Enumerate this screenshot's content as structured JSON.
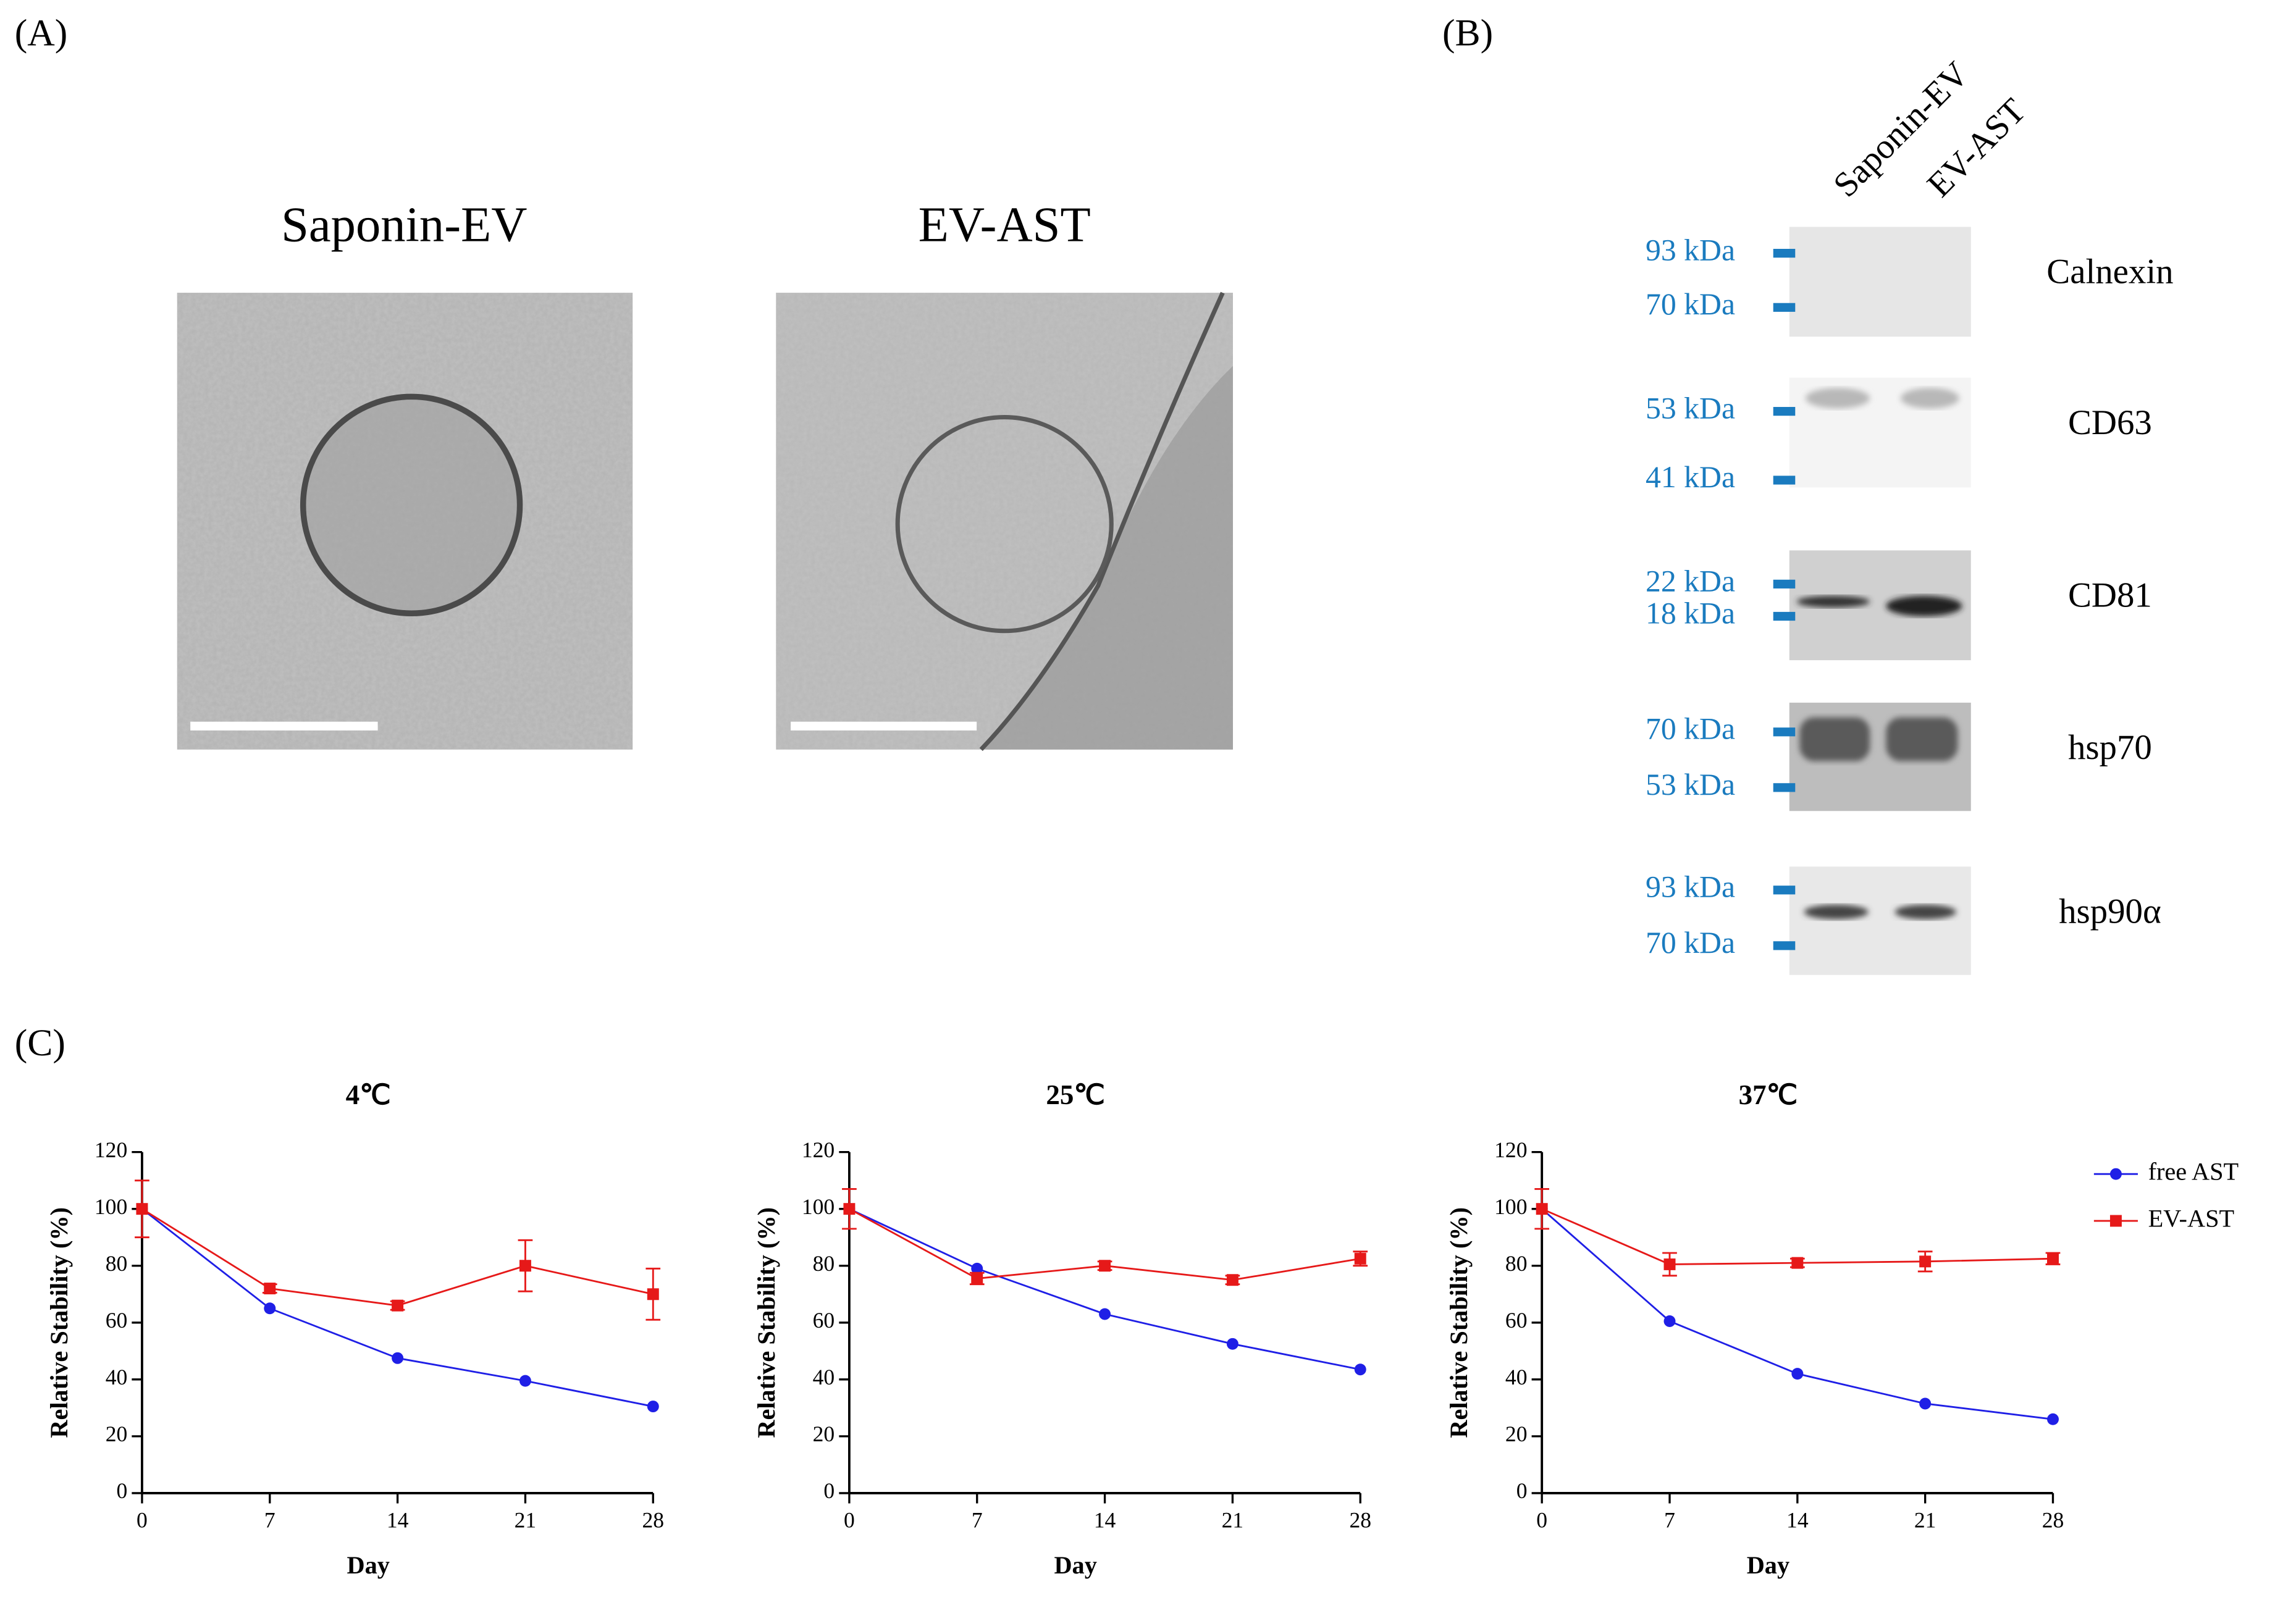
{
  "labels": {
    "a": "(A)",
    "b": "(B)",
    "c": "(C)"
  },
  "micrographs": [
    {
      "title": "Saponin-EV"
    },
    {
      "title": "EV-AST"
    }
  ],
  "blot": {
    "lanes": [
      "Saponin-EV",
      "EV-AST"
    ],
    "rows": [
      {
        "protein": "Calnexin",
        "markers": [
          "93 kDa",
          "70 kDa"
        ]
      },
      {
        "protein": "CD63",
        "markers": [
          "53 kDa",
          "41 kDa"
        ]
      },
      {
        "protein": "CD81",
        "markers": [
          "22 kDa",
          "18 kDa"
        ]
      },
      {
        "protein": "hsp70",
        "markers": [
          "70 kDa",
          "53 kDa"
        ]
      },
      {
        "protein": "hsp90α",
        "markers": [
          "93 kDa",
          "70 kDa"
        ]
      }
    ]
  },
  "chart_data": [
    {
      "type": "line",
      "title": "4℃",
      "xlabel": "Day",
      "ylabel": "Relative Stability (%)",
      "x": [
        0,
        7,
        14,
        21,
        28
      ],
      "xlim": [
        0,
        28
      ],
      "xticks": [
        0,
        7,
        14,
        21,
        28
      ],
      "ylim": [
        0,
        120
      ],
      "yticks": [
        0,
        20,
        40,
        60,
        80,
        100,
        120
      ],
      "series": [
        {
          "name": "free AST",
          "color": "#1f1fe6",
          "marker": "circle",
          "values": [
            100,
            65,
            47.5,
            39.5,
            30.5
          ]
        },
        {
          "name": "EV-AST",
          "color": "#e61919",
          "marker": "square",
          "values": [
            100,
            72,
            66,
            80,
            70
          ],
          "errors": [
            10,
            1.5,
            1.5,
            9,
            9
          ]
        }
      ]
    },
    {
      "type": "line",
      "title": "25℃",
      "xlabel": "Day",
      "ylabel": "Relative Stability (%)",
      "x": [
        0,
        7,
        14,
        21,
        28
      ],
      "xlim": [
        0,
        28
      ],
      "xticks": [
        0,
        7,
        14,
        21,
        28
      ],
      "ylim": [
        0,
        120
      ],
      "yticks": [
        0,
        20,
        40,
        60,
        80,
        100,
        120
      ],
      "series": [
        {
          "name": "free AST",
          "color": "#1f1fe6",
          "marker": "circle",
          "values": [
            100,
            79,
            63,
            52.5,
            43.5
          ]
        },
        {
          "name": "EV-AST",
          "color": "#e61919",
          "marker": "square",
          "values": [
            100,
            75.5,
            80,
            75,
            82.5
          ],
          "errors": [
            7,
            2,
            1.5,
            1.5,
            2.5
          ]
        }
      ]
    },
    {
      "type": "line",
      "title": "37℃",
      "xlabel": "Day",
      "ylabel": "Relative Stability (%)",
      "x": [
        0,
        7,
        14,
        21,
        28
      ],
      "xlim": [
        0,
        28
      ],
      "xticks": [
        0,
        7,
        14,
        21,
        28
      ],
      "ylim": [
        0,
        120
      ],
      "yticks": [
        0,
        20,
        40,
        60,
        80,
        100,
        120
      ],
      "legend": "right",
      "series": [
        {
          "name": "free AST",
          "color": "#1f1fe6",
          "marker": "circle",
          "values": [
            100,
            60.5,
            42,
            31.5,
            26
          ]
        },
        {
          "name": "EV-AST",
          "color": "#e61919",
          "marker": "square",
          "values": [
            100,
            80.5,
            81,
            81.5,
            82.5
          ],
          "errors": [
            7,
            4,
            1.5,
            3.5,
            2
          ]
        }
      ]
    }
  ]
}
